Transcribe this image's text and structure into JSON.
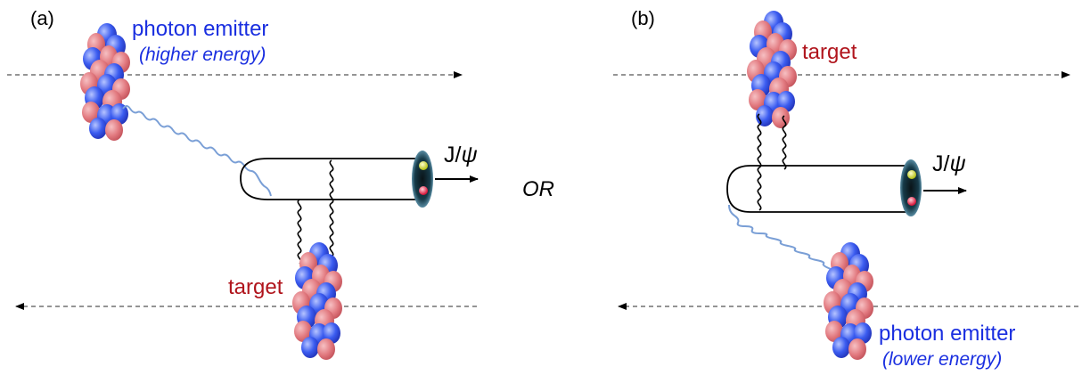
{
  "panels": {
    "a": {
      "label": "(a)",
      "emitter_label": "photon emitter",
      "emitter_note": "(higher energy)",
      "target_label": "target",
      "meson_label": "J/",
      "meson_symbol": "ψ"
    },
    "b": {
      "label": "(b)",
      "emitter_label": "photon emitter",
      "emitter_note": "(lower energy)",
      "target_label": "target",
      "meson_label": "J/",
      "meson_symbol": "ψ"
    }
  },
  "separator": "OR",
  "colors": {
    "photon_line": "#7a9fd6",
    "emitter_text": "#1a2fe0",
    "target_text": "#b0141c",
    "proton_red": "#e27a80",
    "proton_blue": "#3b5cf0",
    "beam_line": "#555555"
  },
  "icons": {
    "nucleus": "nucleus-cluster",
    "meson": "meson-ellipse",
    "gluon": "gluon-coil",
    "photon": "photon-wave"
  }
}
